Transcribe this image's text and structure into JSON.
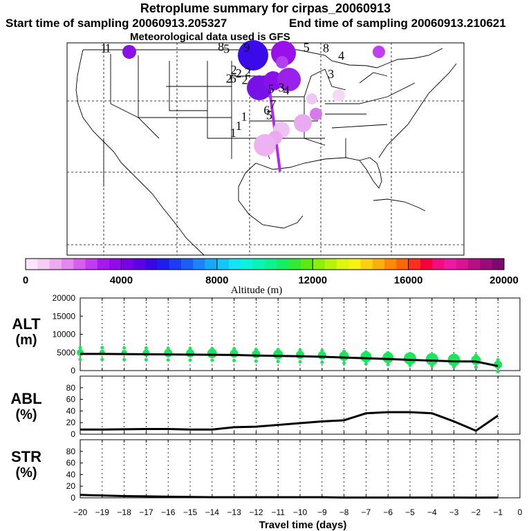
{
  "header": {
    "title": "Retroplume summary for cirpas_20060913",
    "start": "Start time of sampling 20060913.205327",
    "end": "End time of sampling 20060913.210621",
    "met": "Meteorological data used is GFS"
  },
  "colorbar": {
    "label": "Altitude (m)",
    "ticks": [
      "0",
      "4000",
      "8000",
      "12000",
      "16000",
      "20000"
    ],
    "range": [
      0,
      20000
    ],
    "colors": [
      "#fde6fb",
      "#f6cdf5",
      "#eeaaf0",
      "#e488ef",
      "#d65ff0",
      "#c43af4",
      "#a817f0",
      "#9308ec",
      "#7a00e8",
      "#5c00e6",
      "#3a06e8",
      "#1f1cf0",
      "#1a3cf6",
      "#1a5efa",
      "#1a84fc",
      "#16a8fc",
      "#12c8fa",
      "#10e6f6",
      "#0af3dc",
      "#06f4b6",
      "#0af390",
      "#12ef62",
      "#30ec34",
      "#5aec12",
      "#8af00a",
      "#b4f40a",
      "#dcf60e",
      "#f6f212",
      "#fbd20e",
      "#fcb00a",
      "#fc8a08",
      "#fc6608",
      "#fb2f1c",
      "#f6003c",
      "#f40b80",
      "#ee18a4",
      "#dc1296",
      "#b80e88",
      "#9a0a7c",
      "#7e0870"
    ]
  },
  "map_labels": [
    {
      "t": "1",
      "lon": -124.5,
      "lat": 48.7
    },
    {
      "t": "1",
      "lon": -123.8,
      "lat": 48.7
    },
    {
      "t": "8",
      "lon": -105.3,
      "lat": 48.9
    },
    {
      "t": "5",
      "lon": -104.4,
      "lat": 48.6
    },
    {
      "t": "9",
      "lon": -101.1,
      "lat": 48.8
    },
    {
      "t": "5",
      "lon": -91.3,
      "lat": 48.8
    },
    {
      "t": "8",
      "lon": -88.1,
      "lat": 48.7
    },
    {
      "t": "4",
      "lon": -85.6,
      "lat": 47.6
    },
    {
      "t": "3",
      "lon": -87.3,
      "lat": 45.0
    },
    {
      "t": "2",
      "lon": -103.2,
      "lat": 45.6
    },
    {
      "t": "2",
      "lon": -102.4,
      "lat": 45.1
    },
    {
      "t": "2",
      "lon": -100.9,
      "lat": 45.3
    },
    {
      "t": "2",
      "lon": -104.0,
      "lat": 44.4
    },
    {
      "t": "6",
      "lon": -103.3,
      "lat": 44.4
    },
    {
      "t": "2",
      "lon": -101.4,
      "lat": 44.2
    },
    {
      "t": "5",
      "lon": -97.1,
      "lat": 42.9
    },
    {
      "t": "3",
      "lon": -95.4,
      "lat": 43.1
    },
    {
      "t": "4",
      "lon": -94.6,
      "lat": 42.7
    },
    {
      "t": "7",
      "lon": -96.8,
      "lat": 40.7
    },
    {
      "t": "6",
      "lon": -97.8,
      "lat": 39.9
    },
    {
      "t": "5",
      "lon": -97.4,
      "lat": 39.2
    },
    {
      "t": "1",
      "lon": -101.5,
      "lat": 39.0
    },
    {
      "t": "1",
      "lon": -102.4,
      "lat": 37.7
    },
    {
      "t": "1",
      "lon": -103.3,
      "lat": 36.7
    }
  ],
  "sidebar_labels": {
    "alt": "ALT",
    "alt_unit": "(m)",
    "abl": "ABL",
    "abl_unit": "(%)",
    "str": "STR",
    "str_unit": "(%)"
  },
  "chart_data": [
    {
      "type": "line",
      "title": "ALT (m)",
      "x": [
        -20,
        -19,
        -18,
        -17,
        -16,
        -15,
        -14,
        -13,
        -12,
        -11,
        -10,
        -9,
        -8,
        -7,
        -6,
        -5,
        -4,
        -3,
        -2,
        -1
      ],
      "values": [
        4600,
        4600,
        4550,
        4500,
        4450,
        4400,
        4350,
        4300,
        4150,
        4050,
        3950,
        3800,
        3600,
        3400,
        3200,
        2950,
        2750,
        2550,
        2500,
        1250
      ],
      "xlim": [
        -20,
        0
      ],
      "ylim": [
        0,
        20000
      ],
      "yticks": [
        "0",
        "5000",
        "10000",
        "15000",
        "20000"
      ],
      "scatter_sizes": [
        5,
        4,
        4,
        5,
        6,
        6,
        7,
        6,
        6,
        7,
        6,
        6,
        7,
        8,
        8,
        9,
        9,
        9,
        7,
        6
      ]
    },
    {
      "type": "line",
      "title": "ABL (%)",
      "x": [
        -20,
        -19,
        -18,
        -17,
        -16,
        -15,
        -14,
        -13,
        -12,
        -11,
        -10,
        -9,
        -8,
        -7,
        -6,
        -5,
        -4,
        -3,
        -2,
        -1
      ],
      "values": [
        8,
        8,
        8.5,
        9,
        9,
        8,
        8,
        12,
        13,
        16,
        19,
        22,
        24,
        36,
        38,
        38,
        36,
        22,
        6,
        32
      ],
      "xlim": [
        -20,
        0
      ],
      "ylim": [
        0,
        100
      ],
      "yticks": [
        "0",
        "20",
        "40",
        "60",
        "80"
      ]
    },
    {
      "type": "line",
      "title": "STR (%)",
      "x": [
        -20,
        -19,
        -18,
        -17,
        -16,
        -15,
        -14,
        -13,
        -12,
        -11,
        -10,
        -9,
        -8,
        -7,
        -6,
        -5,
        -4,
        -3,
        -2,
        -1
      ],
      "values": [
        5,
        4,
        3,
        2.5,
        2,
        1.5,
        1,
        1,
        1,
        1,
        1,
        1,
        0.5,
        0.5,
        0.5,
        0.5,
        0.5,
        0.5,
        0.3,
        0.5
      ],
      "xlim": [
        -20,
        0
      ],
      "ylim": [
        0,
        100
      ],
      "yticks": [
        "0",
        "20",
        "40",
        "60",
        "80"
      ],
      "xticks": [
        "−20",
        "−19",
        "−18",
        "−17",
        "−16",
        "−15",
        "−14",
        "−13",
        "−12",
        "−11",
        "−10",
        "−9",
        "−8",
        "−7",
        "−6",
        "−5",
        "−4",
        "−3",
        "−2",
        "−1",
        "0"
      ],
      "xlabel": "Travel time (days)"
    }
  ]
}
